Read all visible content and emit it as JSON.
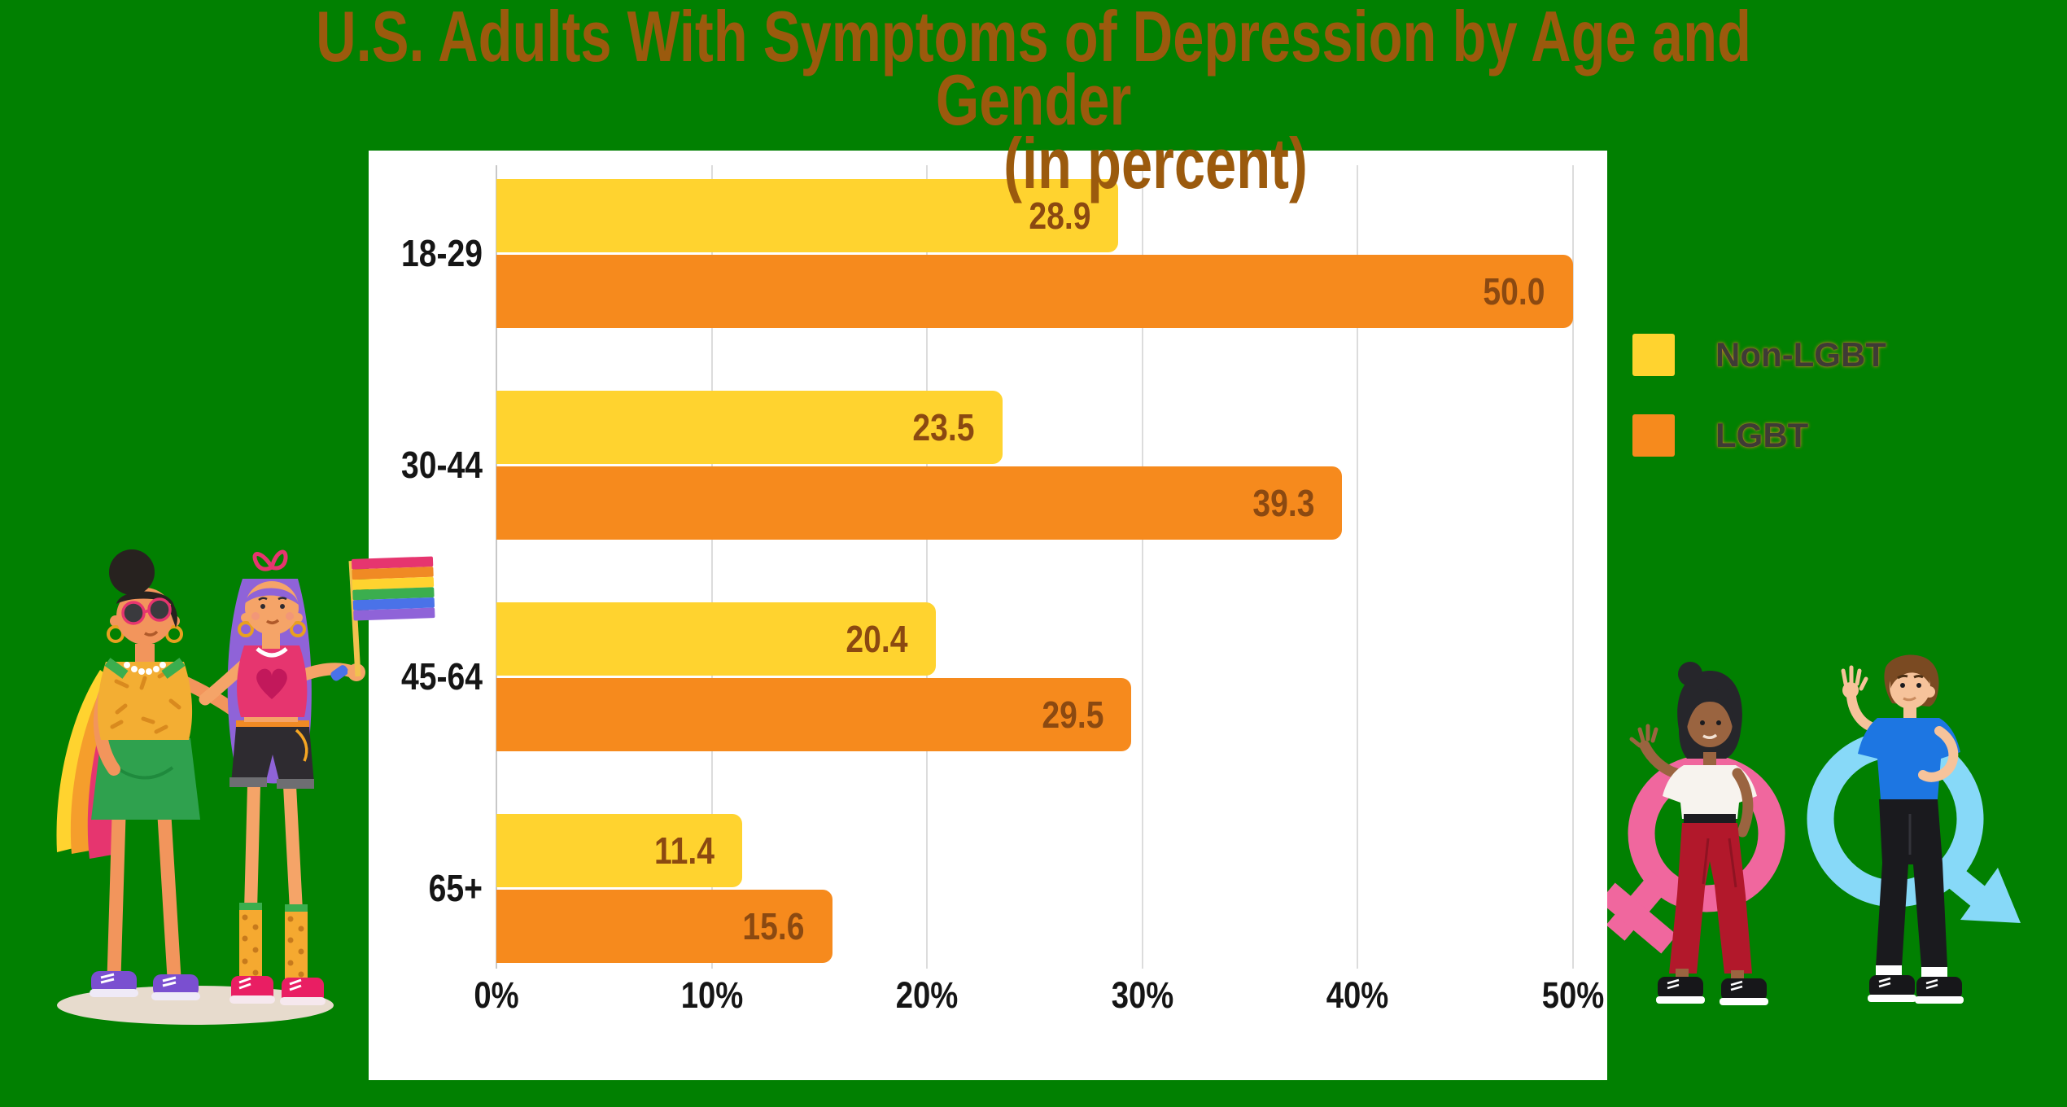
{
  "title": {
    "line1": "U.S. Adults With Symptoms of Depression by Age and Gender",
    "line2": "(in percent)"
  },
  "chart_data": {
    "type": "bar",
    "orientation": "horizontal",
    "title": "U.S. Adults With Symptoms of Depression by Age and Gender (in percent)",
    "categories": [
      "18-29",
      "30-44",
      "45-64",
      "65+"
    ],
    "series": [
      {
        "name": "Non-LGBT",
        "color": "#FFD32F",
        "values": [
          28.9,
          23.5,
          20.4,
          11.4
        ]
      },
      {
        "name": "LGBT",
        "color": "#F68A1D",
        "values": [
          50.0,
          39.3,
          29.5,
          15.6
        ]
      }
    ],
    "x_ticks": [
      "0%",
      "10%",
      "20%",
      "30%",
      "40%",
      "50%"
    ],
    "xlim": [
      0,
      50
    ],
    "grid": true,
    "value_label_position": "inside-end",
    "legend_position": "right-of-plot"
  },
  "legend": {
    "items": [
      {
        "label": "Non-LGBT",
        "color": "#FFD32F"
      },
      {
        "label": "LGBT",
        "color": "#F68A1D"
      }
    ]
  },
  "colors": {
    "background": "#018001",
    "panel": "#FFFFFF",
    "title_text": "#9B5A0D",
    "value_label_text": "#8B4911",
    "axis_text": "#151515",
    "legend_text": "#3E3B35",
    "gridline": "#DCDCDC",
    "female_symbol_pink": "#F0679E",
    "male_symbol_blue": "#87D9F8"
  },
  "illustrations": {
    "left": "two-women-with-pride-flag",
    "right": "woman-with-female-symbol-and-man-with-male-symbol"
  }
}
